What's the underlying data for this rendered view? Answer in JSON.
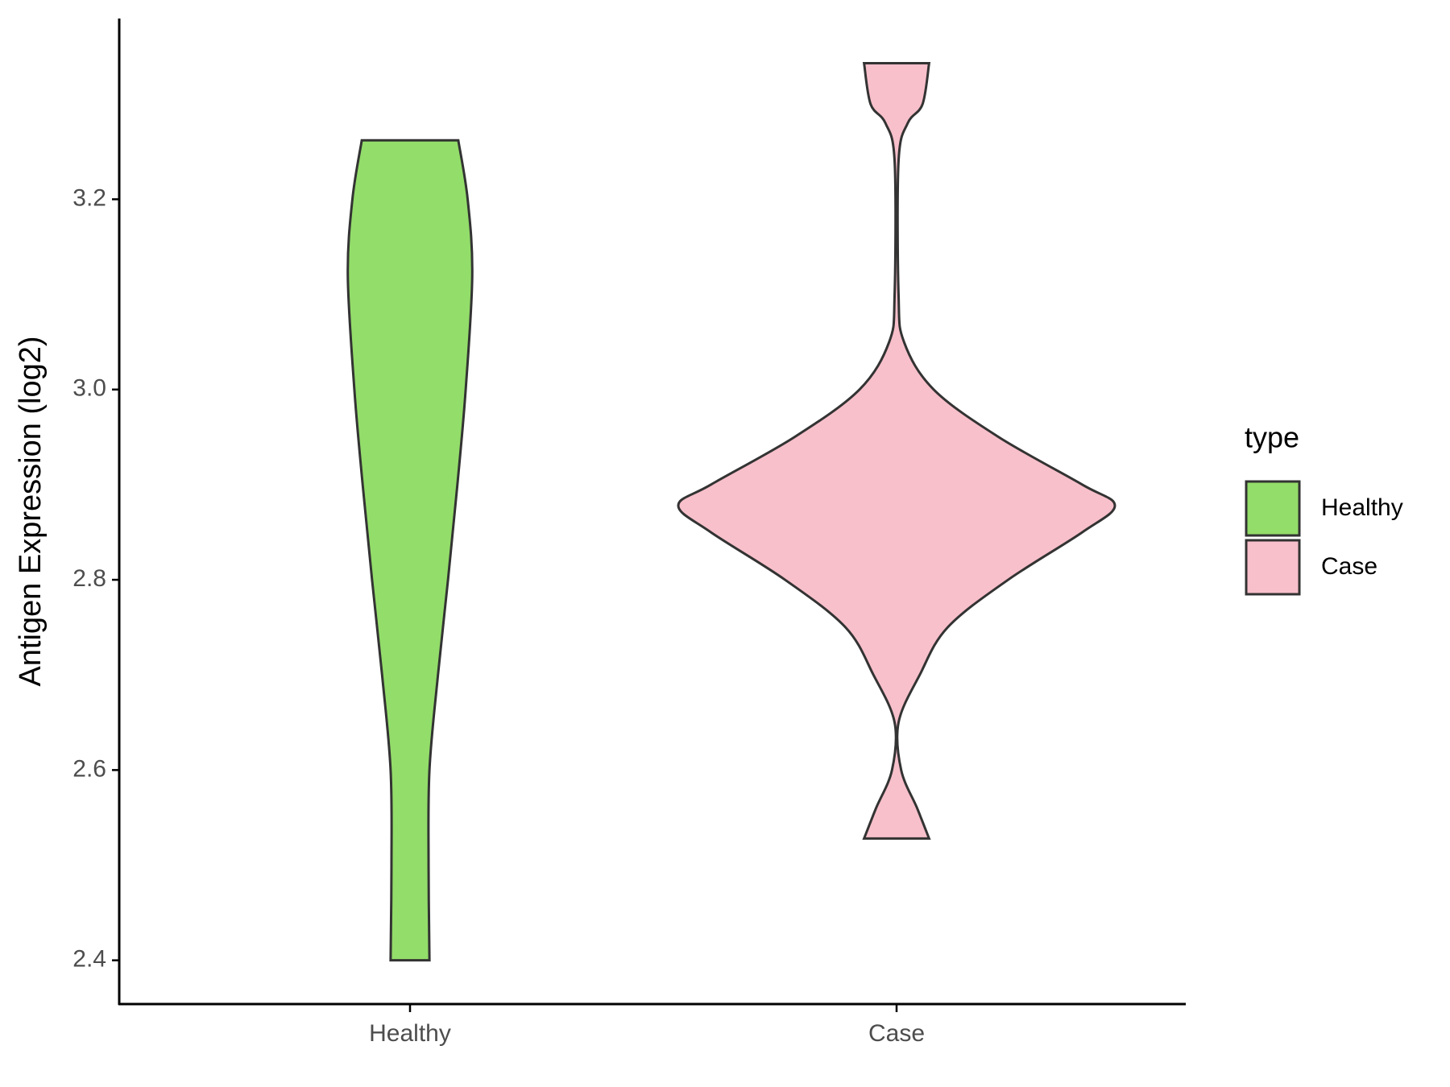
{
  "chart_data": {
    "type": "violin",
    "y_label": "Antigen Expression (log2)",
    "categories": [
      "Healthy",
      "Case"
    ],
    "legend_title": "type",
    "legend": "right",
    "series": [
      {
        "name": "Healthy",
        "color": "#93dd6a",
        "y": [
          2.4,
          2.5,
          2.6,
          2.7,
          2.8,
          2.9,
          3.0,
          3.12,
          3.2,
          3.262
        ],
        "width": [
          0.089,
          0.085,
          0.089,
          0.128,
          0.174,
          0.217,
          0.255,
          0.285,
          0.264,
          0.221
        ]
      },
      {
        "name": "Case",
        "color": "#f8c0cb",
        "y": [
          2.528,
          2.56,
          2.6,
          2.65,
          2.7,
          2.75,
          2.8,
          2.85,
          2.878,
          2.9,
          2.95,
          3.0,
          3.05,
          3.1,
          3.24,
          3.28,
          3.3,
          3.343
        ],
        "width": [
          0.149,
          0.094,
          0.021,
          0.009,
          0.106,
          0.234,
          0.511,
          0.851,
          1,
          0.851,
          0.468,
          0.17,
          0.034,
          0.009,
          0.009,
          0.051,
          0.119,
          0.149
        ]
      }
    ],
    "ylim": [
      2.354,
      3.39
    ],
    "yticks": [
      2.4,
      2.6,
      2.8,
      {
        "value": 3,
        "label": "3.0"
      },
      3.2
    ]
  }
}
